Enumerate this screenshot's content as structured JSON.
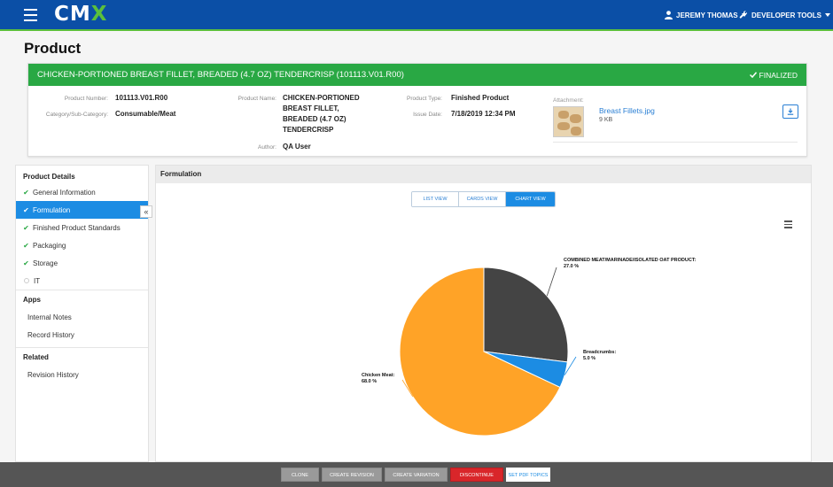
{
  "nav": {
    "logo_prefix": "CM",
    "logo_x": "X",
    "user": "JEREMY THOMAS",
    "tools": "DEVELOPER TOOLS"
  },
  "page": {
    "title": "Product"
  },
  "product": {
    "header": "CHICKEN-PORTIONED BREAST FILLET, BREADED (4.7 OZ) TENDERCRISP (101113.V01.R00)",
    "status": "FINALIZED",
    "number_label": "Product Number:",
    "number": "101113.V01.R00",
    "category_label": "Category/Sub-Category:",
    "category": "Consumable/Meat",
    "name_label": "Product Name:",
    "name_lines": [
      "CHICKEN-PORTIONED",
      "BREAST FILLET,",
      "BREADED (4.7 OZ)",
      "TENDERCRISP"
    ],
    "author_label": "Author:",
    "author": "QA User",
    "type_label": "Product Type:",
    "type": "Finished Product",
    "issue_label": "Issue Date:",
    "issue": "7/18/2019 12:34 PM",
    "attachment_label": "Attachment:",
    "attachment_name": "Breast Fillets.jpg",
    "attachment_size": "9 KB"
  },
  "sidebar": {
    "details_title": "Product Details",
    "items": [
      {
        "label": "General Information"
      },
      {
        "label": "Formulation"
      },
      {
        "label": "Finished Product Standards"
      },
      {
        "label": "Packaging"
      },
      {
        "label": "Storage"
      },
      {
        "label": "IT"
      }
    ],
    "apps_title": "Apps",
    "apps": [
      {
        "label": "Internal Notes"
      },
      {
        "label": "Record History"
      }
    ],
    "related_title": "Related",
    "related": [
      {
        "label": "Revision History"
      }
    ],
    "collapse_glyph": "«"
  },
  "panel": {
    "title": "Formulation",
    "views": [
      "LIST VIEW",
      "CARDS VIEW",
      "CHART VIEW"
    ]
  },
  "chart_data": {
    "type": "pie",
    "slices": [
      {
        "label": "COMBINED MEAT/MARINADE/ISOLATED OAT PRODUCT:",
        "value": 27.0,
        "display": "27.0 %",
        "color": "#444444"
      },
      {
        "label": "Breadcrumbs:",
        "value": 5.0,
        "display": "5.0 %",
        "color": "#1c8ce3"
      },
      {
        "label": "Chicken Meat:",
        "value": 68.0,
        "display": "68.0 %",
        "color": "#ffa327"
      }
    ]
  },
  "actions": {
    "clone": "CLONE",
    "create_revision": "CREATE REVISION",
    "create_variation": "CREATE VARIATION",
    "discontinue": "DISCONTINUE",
    "set_pdf": "SET PDF TOPICS"
  },
  "colors": {
    "nav_bg": "#0b4fa6",
    "brand_green": "#29a844",
    "active_blue": "#1c8ce3",
    "discontinue_red": "#d9262a"
  }
}
